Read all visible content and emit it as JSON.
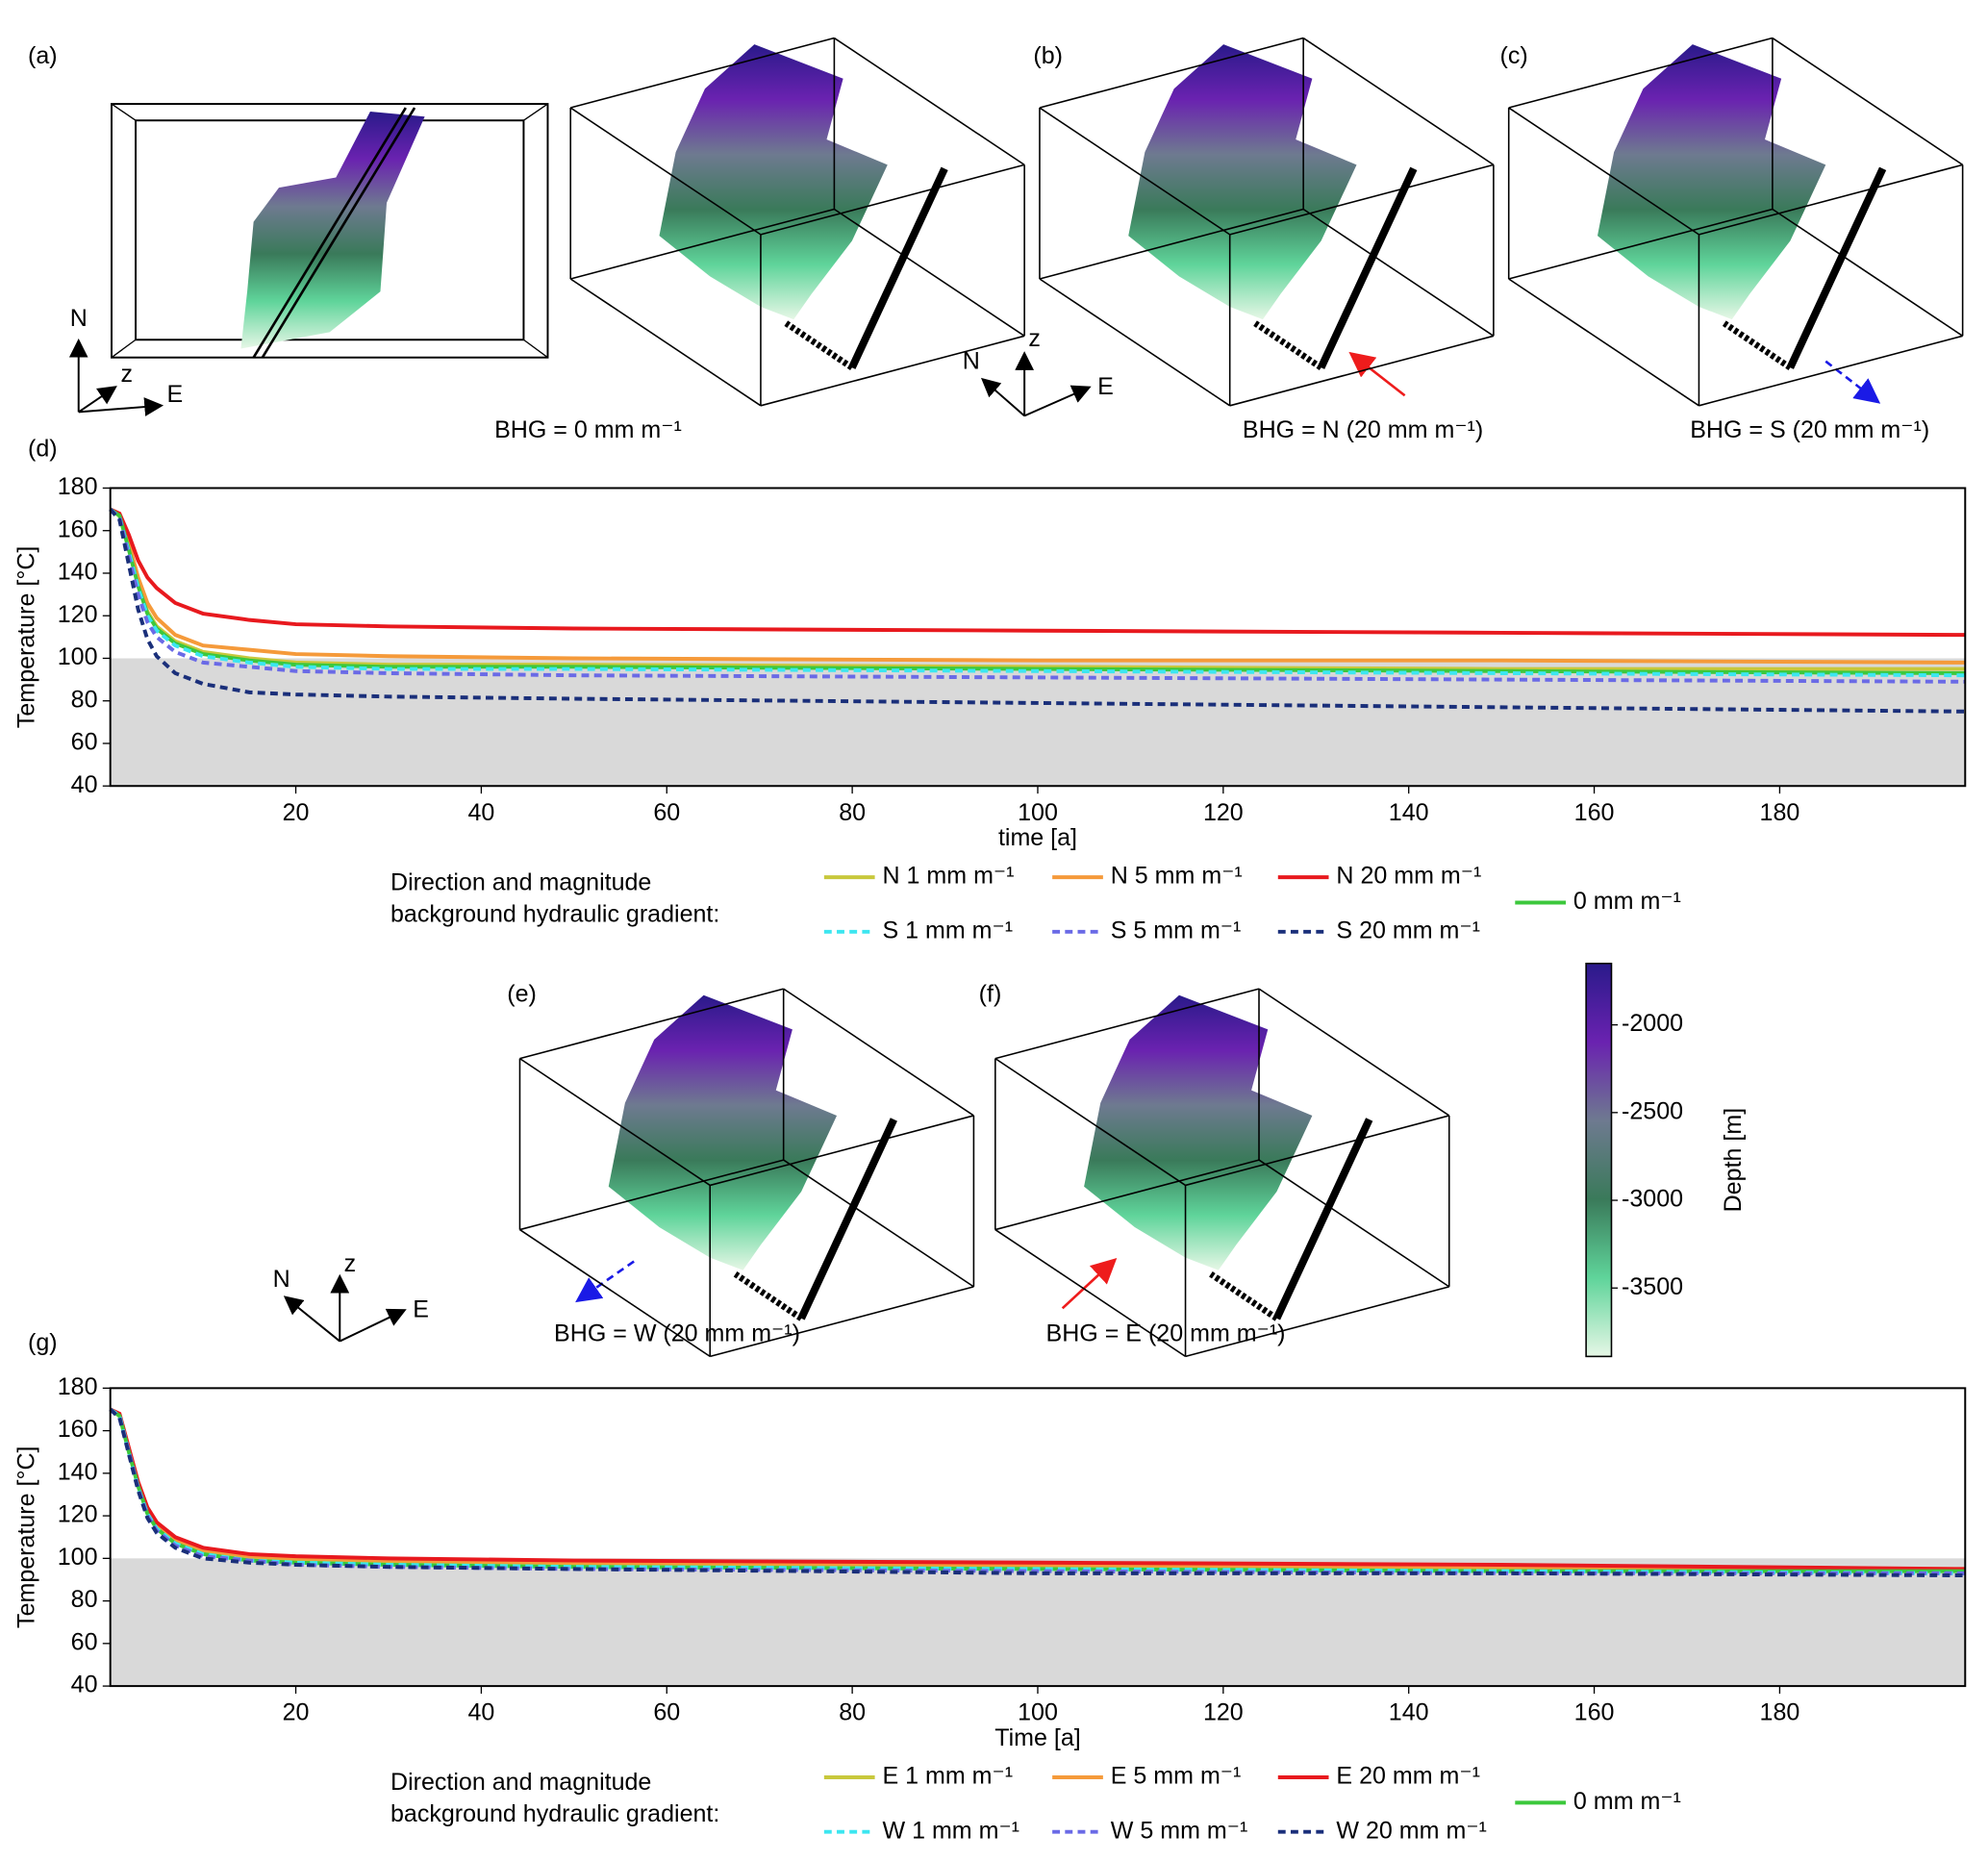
{
  "figure": {
    "panel_labels": [
      "(a)",
      "(b)",
      "(c)",
      "(d)",
      "(e)",
      "(f)",
      "(g)"
    ],
    "compass_labels": [
      "N",
      "z",
      "E"
    ],
    "annotations": [
      {
        "text": "BHG = 0 mm m⁻¹",
        "color": "#2eaa2e"
      },
      {
        "text": "BHG = N (20 mm m⁻¹)",
        "color": "#ee1c1c"
      },
      {
        "text": "BHG = S (20 mm m⁻¹)",
        "color": "#1a1ae6"
      },
      {
        "text": "BHG = W (20 mm m⁻¹)",
        "color": "#1a1ae6"
      },
      {
        "text": "BHG = E (20 mm m⁻¹)",
        "color": "#ee1c1c"
      }
    ]
  },
  "chart_data": [
    {
      "type": "line",
      "x_label": "time [a]",
      "y_label": "Temperature [°C]",
      "x": [
        0,
        1,
        2,
        3,
        4,
        5,
        7,
        10,
        15,
        20,
        30,
        50,
        100,
        150,
        200
      ],
      "xlim": [
        0,
        200
      ],
      "xticks": [
        20,
        40,
        60,
        80,
        100,
        120,
        140,
        160,
        180
      ],
      "ylim": [
        40,
        180
      ],
      "yticks": [
        40,
        60,
        80,
        100,
        120,
        140,
        160,
        180
      ],
      "shade_below": 100,
      "shade_color": "#d9d9d9",
      "legend_title": [
        "Direction and magnitude",
        "background hydraulic gradient:"
      ],
      "series": [
        {
          "name": "N 1 mm m⁻¹",
          "color": "#c8c83c",
          "dashed": false,
          "values": [
            170,
            167,
            152,
            135,
            122,
            115,
            108,
            103,
            100,
            98,
            97,
            97,
            96,
            95,
            95
          ]
        },
        {
          "name": "N 5 mm m⁻¹",
          "color": "#f59a3a",
          "dashed": false,
          "values": [
            170,
            167,
            154,
            138,
            126,
            119,
            111,
            106,
            104,
            102,
            101,
            100,
            99,
            99,
            98
          ]
        },
        {
          "name": "N 20 mm m⁻¹",
          "color": "#e8191e",
          "dashed": false,
          "values": [
            170,
            168,
            158,
            146,
            138,
            133,
            126,
            121,
            118,
            116,
            115,
            114,
            113,
            112,
            111
          ]
        },
        {
          "name": "0 mm m⁻¹",
          "color": "#3cc83c",
          "dashed": false,
          "values": [
            170,
            167,
            151,
            134,
            121,
            114,
            107,
            102,
            99,
            97,
            96,
            96,
            95,
            94,
            93
          ]
        },
        {
          "name": "S 1 mm m⁻¹",
          "color": "#3ce6f0",
          "dashed": true,
          "values": [
            170,
            166,
            150,
            133,
            120,
            113,
            106,
            101,
            98,
            96,
            95,
            95,
            94,
            93,
            92
          ]
        },
        {
          "name": "S 5 mm m⁻¹",
          "color": "#6a6ae6",
          "dashed": true,
          "values": [
            170,
            166,
            148,
            130,
            117,
            110,
            103,
            98,
            96,
            94,
            93,
            92,
            91,
            90,
            89
          ]
        },
        {
          "name": "S 20 mm m⁻¹",
          "color": "#1a2f7a",
          "dashed": true,
          "values": [
            170,
            165,
            144,
            123,
            109,
            101,
            93,
            88,
            84,
            83,
            82,
            81,
            79,
            77,
            75
          ]
        }
      ]
    },
    {
      "type": "line",
      "x_label": "Time [a]",
      "y_label": "Temperature [°C]",
      "x": [
        0,
        1,
        2,
        3,
        4,
        5,
        7,
        10,
        15,
        20,
        30,
        50,
        100,
        150,
        200
      ],
      "xlim": [
        0,
        200
      ],
      "xticks": [
        20,
        40,
        60,
        80,
        100,
        120,
        140,
        160,
        180
      ],
      "ylim": [
        40,
        180
      ],
      "yticks": [
        40,
        60,
        80,
        100,
        120,
        140,
        160,
        180
      ],
      "shade_below": 100,
      "shade_color": "#d9d9d9",
      "legend_title": [
        "Direction and magnitude",
        "background hydraulic gradient:"
      ],
      "series": [
        {
          "name": "E 1 mm m⁻¹",
          "color": "#c8c83c",
          "dashed": false,
          "values": [
            170,
            167,
            151,
            134,
            122,
            115,
            108,
            103,
            100,
            99,
            98,
            97,
            96,
            95,
            94
          ]
        },
        {
          "name": "E 5 mm m⁻¹",
          "color": "#f59a3a",
          "dashed": false,
          "values": [
            170,
            167,
            151,
            135,
            123,
            116,
            109,
            104,
            101,
            100,
            99,
            98,
            97,
            96,
            95
          ]
        },
        {
          "name": "E 20 mm m⁻¹",
          "color": "#e8191e",
          "dashed": false,
          "values": [
            170,
            168,
            152,
            136,
            124,
            117,
            110,
            105,
            102,
            101,
            100,
            99,
            98,
            97,
            95
          ]
        },
        {
          "name": "0 mm m⁻¹",
          "color": "#3cc83c",
          "dashed": false,
          "values": [
            170,
            167,
            150,
            134,
            121,
            114,
            107,
            102,
            99,
            98,
            97,
            96,
            95,
            94,
            94
          ]
        },
        {
          "name": "W 1 mm m⁻¹",
          "color": "#3ce6f0",
          "dashed": true,
          "values": [
            170,
            167,
            150,
            133,
            121,
            114,
            107,
            102,
            99,
            98,
            97,
            96,
            95,
            94,
            93
          ]
        },
        {
          "name": "W 5 mm m⁻¹",
          "color": "#6a6ae6",
          "dashed": true,
          "values": [
            170,
            166,
            150,
            133,
            120,
            113,
            106,
            101,
            99,
            97,
            96,
            95,
            94,
            93,
            93
          ]
        },
        {
          "name": "W 20 mm m⁻¹",
          "color": "#1a2f7a",
          "dashed": true,
          "values": [
            170,
            166,
            149,
            132,
            119,
            112,
            105,
            100,
            98,
            97,
            96,
            95,
            93,
            93,
            92
          ]
        }
      ]
    },
    {
      "type": "colorbar",
      "label": "Depth [m]",
      "lim": [
        -3890,
        -1650
      ],
      "ticks": [
        -2000,
        -2500,
        -3000,
        -3500
      ],
      "colors": [
        "#e6f7e6",
        "#5fd49a",
        "#3a7a5a",
        "#6e7a90",
        "#6a22b0",
        "#2a1a8a"
      ]
    }
  ]
}
